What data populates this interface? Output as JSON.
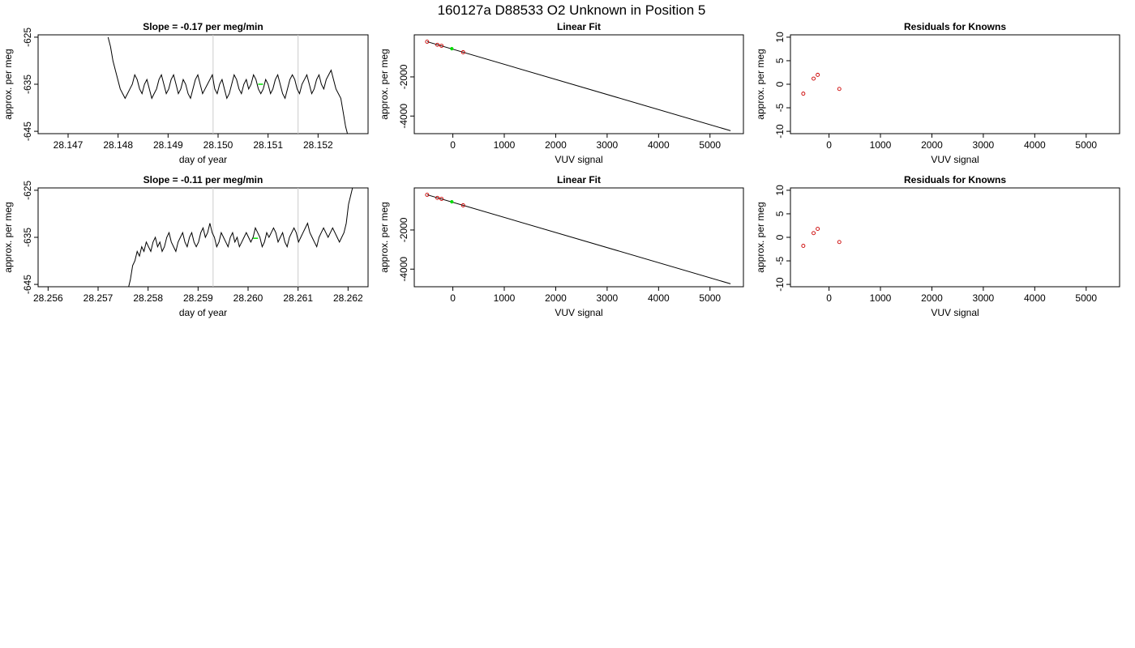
{
  "page": {
    "title": "160127a      D88533   O2 Unknown in Position  5"
  },
  "chart_data": [
    {
      "id": "ts1",
      "type": "line",
      "title": "Slope =  -0.17  per meg/min",
      "xlabel": "day of year",
      "ylabel": "approx. per meg",
      "xlim": [
        28.1464,
        28.153
      ],
      "ylim": [
        -645.5,
        -624.5
      ],
      "xticks": [
        "28.147",
        "28.148",
        "28.149",
        "28.150",
        "28.151",
        "28.152"
      ],
      "yticks": [
        "-625",
        "-635",
        "-645"
      ],
      "grid": false,
      "vlines": [
        28.1499,
        28.1516
      ],
      "line_x_start": 28.1478,
      "line_x_end": 28.1526,
      "line_values": [
        -625,
        -627,
        -630,
        -632,
        -634,
        -636,
        -637,
        -638,
        -637,
        -636,
        -635,
        -633,
        -634,
        -636,
        -637,
        -635,
        -634,
        -636,
        -638,
        -637,
        -636,
        -634,
        -633,
        -635,
        -637,
        -636,
        -634,
        -633,
        -635,
        -637,
        -636,
        -634,
        -635,
        -637,
        -638,
        -636,
        -634,
        -633,
        -635,
        -637,
        -636,
        -635,
        -634,
        -633,
        -636,
        -637,
        -635,
        -634,
        -636,
        -638,
        -637,
        -635,
        -633,
        -634,
        -636,
        -637,
        -635,
        -634,
        -636,
        -635,
        -633,
        -634,
        -636,
        -637,
        -636,
        -634,
        -635,
        -637,
        -636,
        -634,
        -633,
        -635,
        -637,
        -638,
        -636,
        -634,
        -633,
        -634,
        -636,
        -637,
        -635,
        -634,
        -633,
        -635,
        -637,
        -636,
        -634,
        -633,
        -635,
        -636,
        -634,
        -633,
        -632,
        -634,
        -636,
        -637,
        -638,
        -641,
        -644,
        -646
      ],
      "marker": {
        "x": 28.15085,
        "y": -635,
        "color": "#00dd00"
      }
    },
    {
      "id": "fit1",
      "type": "scatter",
      "title": "Linear Fit",
      "xlabel": "VUV signal",
      "ylabel": "approx. per meg",
      "xlim": [
        -750,
        5650
      ],
      "ylim": [
        -4900,
        150
      ],
      "xticks": [
        "0",
        "1000",
        "2000",
        "3000",
        "4000",
        "5000"
      ],
      "yticks": [
        "-2000",
        "-4000"
      ],
      "grid": false,
      "fit_line": {
        "x": [
          -500,
          5400
        ],
        "y": [
          -200,
          -4750
        ]
      },
      "points": [
        {
          "x": -500,
          "y": -200,
          "color": "#cc0000"
        },
        {
          "x": -300,
          "y": -360,
          "color": "#cc0000"
        },
        {
          "x": -220,
          "y": -410,
          "color": "#cc0000"
        },
        {
          "x": 200,
          "y": -740,
          "color": "#cc0000"
        }
      ],
      "unknown": {
        "x": -20,
        "y": -560,
        "color": "#00dd00"
      }
    },
    {
      "id": "res1",
      "type": "scatter",
      "title": "Residuals for Knowns",
      "xlabel": "VUV signal",
      "ylabel": "approx. per meg",
      "xlim": [
        -750,
        5650
      ],
      "ylim": [
        -10.5,
        10.5
      ],
      "xticks": [
        "0",
        "1000",
        "2000",
        "3000",
        "4000",
        "5000"
      ],
      "yticks": [
        "-10",
        "-5",
        "0",
        "5",
        "10"
      ],
      "grid": false,
      "points": [
        {
          "x": -500,
          "y": -2,
          "color": "#cc0000"
        },
        {
          "x": -300,
          "y": 1.2,
          "color": "#cc0000"
        },
        {
          "x": -220,
          "y": 2,
          "color": "#cc0000"
        },
        {
          "x": 200,
          "y": -1,
          "color": "#cc0000"
        }
      ]
    },
    {
      "id": "ts2",
      "type": "line",
      "title": "Slope =  -0.11  per meg/min",
      "xlabel": "day of year",
      "ylabel": "approx. per meg",
      "xlim": [
        28.2558,
        28.2624
      ],
      "ylim": [
        -645.5,
        -624.5
      ],
      "xticks": [
        "28.256",
        "28.257",
        "28.258",
        "28.259",
        "28.260",
        "28.261",
        "28.262"
      ],
      "yticks": [
        "-625",
        "-635",
        "-645"
      ],
      "grid": false,
      "vlines": [
        28.2593,
        28.261
      ],
      "line_x_start": 28.2576,
      "line_x_end": 28.2621,
      "line_values": [
        -646,
        -644,
        -641,
        -640,
        -638,
        -639,
        -637,
        -638,
        -636,
        -637,
        -638,
        -636,
        -635,
        -637,
        -636,
        -638,
        -637,
        -635,
        -634,
        -636,
        -637,
        -638,
        -636,
        -635,
        -634,
        -636,
        -637,
        -635,
        -634,
        -636,
        -637,
        -636,
        -634,
        -633,
        -635,
        -634,
        -632,
        -634,
        -635,
        -637,
        -636,
        -634,
        -635,
        -636,
        -637,
        -635,
        -634,
        -636,
        -635,
        -637,
        -636,
        -635,
        -634,
        -635,
        -636,
        -635,
        -633,
        -634,
        -635,
        -637,
        -636,
        -634,
        -635,
        -634,
        -633,
        -634,
        -636,
        -635,
        -634,
        -636,
        -637,
        -635,
        -634,
        -633,
        -634,
        -636,
        -635,
        -634,
        -633,
        -632,
        -634,
        -635,
        -636,
        -637,
        -635,
        -634,
        -633,
        -634,
        -635,
        -634,
        -633,
        -634,
        -635,
        -636,
        -635,
        -634,
        -632,
        -628,
        -626,
        -624
      ],
      "marker": {
        "x": 28.26015,
        "y": -635.2,
        "color": "#00dd00"
      }
    },
    {
      "id": "fit2",
      "type": "scatter",
      "title": "Linear Fit",
      "xlabel": "VUV signal",
      "ylabel": "approx. per meg",
      "xlim": [
        -750,
        5650
      ],
      "ylim": [
        -4900,
        150
      ],
      "xticks": [
        "0",
        "1000",
        "2000",
        "3000",
        "4000",
        "5000"
      ],
      "yticks": [
        "-2000",
        "-4000"
      ],
      "grid": false,
      "fit_line": {
        "x": [
          -500,
          5400
        ],
        "y": [
          -200,
          -4750
        ]
      },
      "points": [
        {
          "x": -500,
          "y": -200,
          "color": "#cc0000"
        },
        {
          "x": -300,
          "y": -360,
          "color": "#cc0000"
        },
        {
          "x": -220,
          "y": -410,
          "color": "#cc0000"
        },
        {
          "x": 200,
          "y": -740,
          "color": "#cc0000"
        }
      ],
      "unknown": {
        "x": -20,
        "y": -560,
        "color": "#00dd00"
      }
    },
    {
      "id": "res2",
      "type": "scatter",
      "title": "Residuals for Knowns",
      "xlabel": "VUV signal",
      "ylabel": "approx. per meg",
      "xlim": [
        -750,
        5650
      ],
      "ylim": [
        -10.5,
        10.5
      ],
      "xticks": [
        "0",
        "1000",
        "2000",
        "3000",
        "4000",
        "5000"
      ],
      "yticks": [
        "-10",
        "-5",
        "0",
        "5",
        "10"
      ],
      "grid": false,
      "points": [
        {
          "x": -500,
          "y": -1.8,
          "color": "#cc0000"
        },
        {
          "x": -300,
          "y": 0.9,
          "color": "#cc0000"
        },
        {
          "x": -220,
          "y": 1.8,
          "color": "#cc0000"
        },
        {
          "x": 200,
          "y": -1,
          "color": "#cc0000"
        }
      ]
    }
  ]
}
